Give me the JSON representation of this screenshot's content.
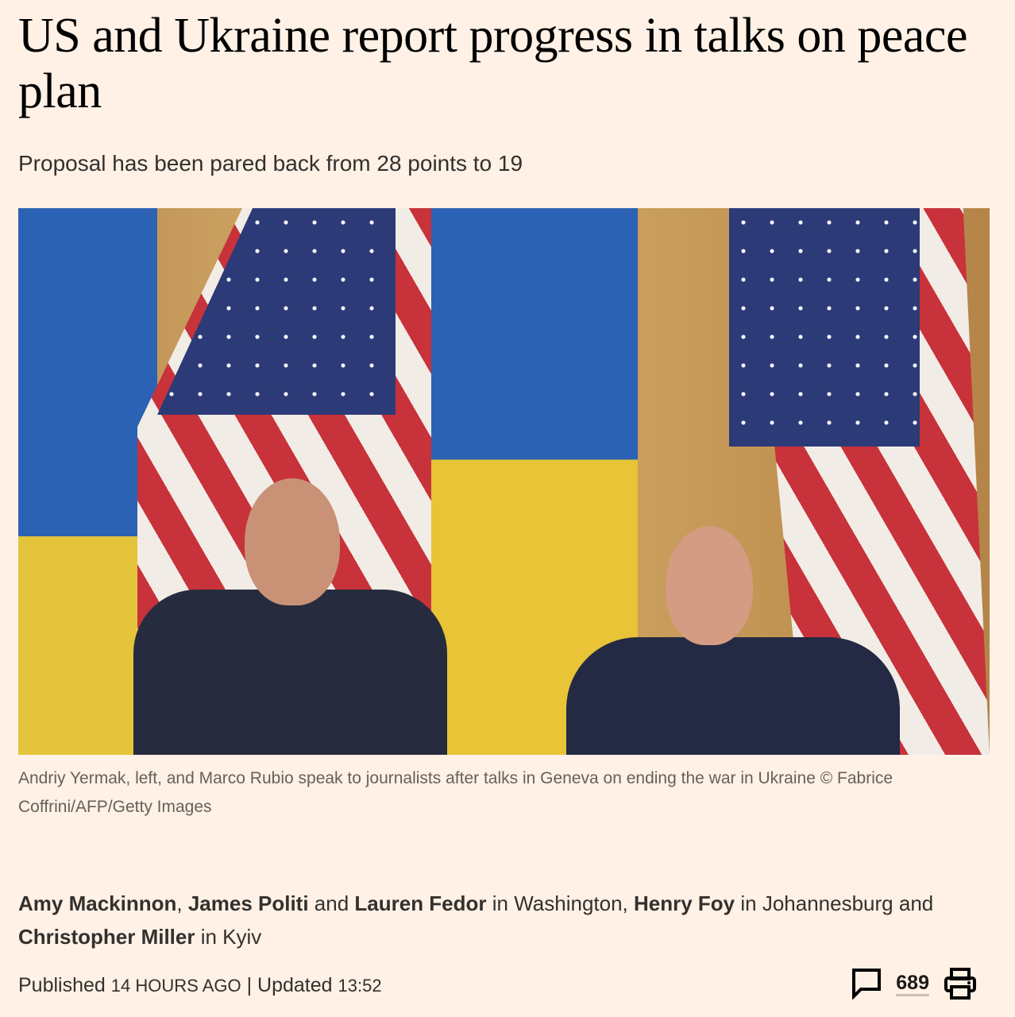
{
  "article": {
    "headline": "US and Ukraine report progress in talks on peace plan",
    "standfirst": "Proposal has been pared back from 28 points to 19",
    "image": {
      "caption": "Andriy Yermak, left, and Marco Rubio speak to journalists after talks in Geneva on ending the war in Ukraine © Fabrice Coffrini/AFP/Getty Images"
    },
    "byline": [
      {
        "name": "Amy Mackinnon",
        "after": ", "
      },
      {
        "name": "James Politi",
        "after": " and "
      },
      {
        "name": "Lauren Fedor",
        "after": " in Washington, "
      },
      {
        "name": "Henry Foy",
        "after": " in Johannesburg and "
      },
      {
        "name": "Christopher Miller",
        "after": " in Kyiv"
      }
    ],
    "published_label": "Published",
    "published_time": "14 HOURS AGO",
    "separator": "|",
    "updated_label": "Updated",
    "updated_time": "13:52",
    "comment_count": "689",
    "icons": {
      "comments": "speech-bubble-icon",
      "print": "printer-icon"
    },
    "colors": {
      "background": "#fff1e5",
      "text": "#33302e"
    }
  }
}
